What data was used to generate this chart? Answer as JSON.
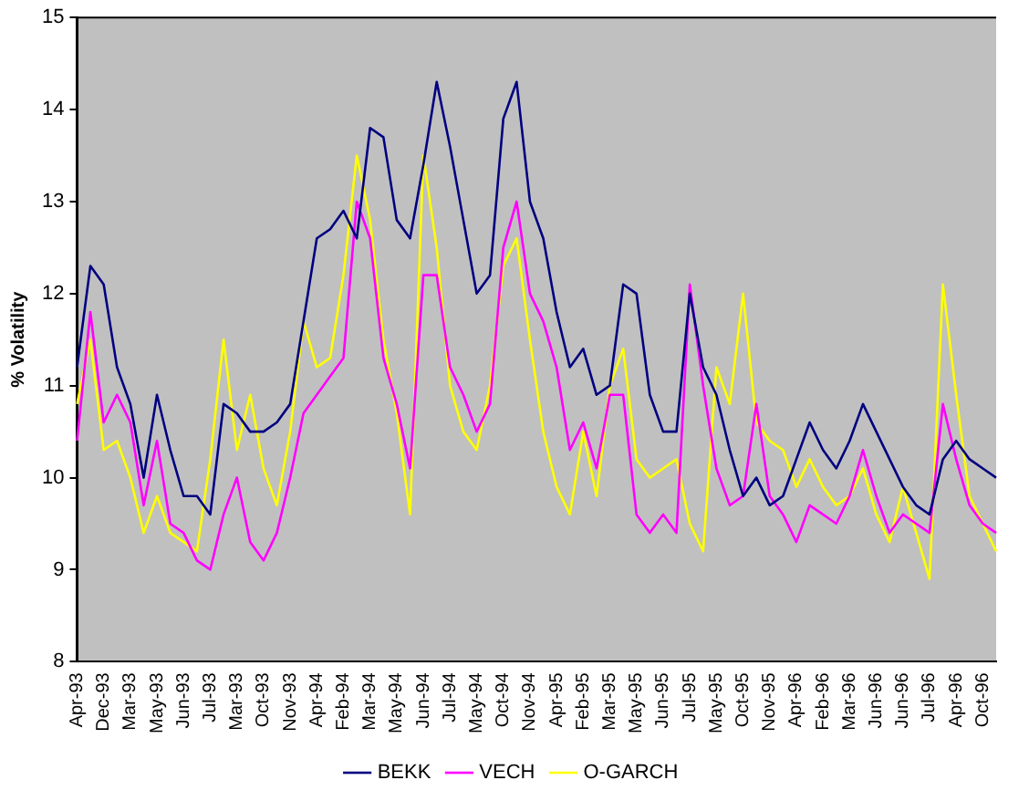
{
  "chart_data": {
    "type": "line",
    "ylabel": "% Volatility",
    "categories": [
      "Apr-93",
      null,
      "Dec-93",
      null,
      "Mar-93",
      null,
      "May-93",
      null,
      "Jun-93",
      null,
      "Jul-93",
      null,
      "Mar-93",
      null,
      "Oct-93",
      null,
      "Nov-93",
      null,
      "Apr-94",
      null,
      "Feb-94",
      null,
      "Mar-94",
      null,
      "May-94",
      null,
      "Jun-94",
      null,
      "Jul-94",
      null,
      "May-94",
      null,
      "Oct-94",
      null,
      "Nov-94",
      null,
      "Apr-95",
      null,
      "Feb-95",
      null,
      "Mar-95",
      null,
      "May-95",
      null,
      "Jun-95",
      null,
      "Jul-95",
      null,
      "May-95",
      null,
      "Oct-95",
      null,
      "Nov-95",
      null,
      "Apr-96",
      null,
      "Feb-96",
      null,
      "Mar-96",
      null,
      "Jun-96",
      null,
      "Jun-96",
      null,
      "Jul-96",
      null,
      "Apr-96",
      null,
      "Oct-96",
      null
    ],
    "series": [
      {
        "name": "BEKK",
        "color": "#000080",
        "values": [
          11.2,
          12.3,
          12.1,
          11.2,
          10.8,
          10.0,
          10.9,
          10.3,
          9.8,
          9.8,
          9.6,
          10.8,
          10.7,
          10.5,
          10.5,
          10.6,
          10.8,
          11.7,
          12.6,
          12.7,
          12.9,
          12.6,
          13.8,
          13.7,
          12.8,
          12.6,
          13.4,
          14.3,
          13.6,
          12.8,
          12.0,
          12.2,
          13.9,
          14.3,
          13.0,
          12.6,
          11.8,
          11.2,
          11.4,
          10.9,
          11.0,
          12.1,
          12.0,
          10.9,
          10.5,
          10.5,
          12.0,
          11.2,
          10.9,
          10.3,
          9.8,
          10.0,
          9.7,
          9.8,
          10.2,
          10.6,
          10.3,
          10.1,
          10.4,
          10.8,
          10.5,
          10.2,
          9.9,
          9.7,
          9.6,
          10.2,
          10.4,
          10.2,
          10.1,
          10.0
        ]
      },
      {
        "name": "VECH",
        "color": "#ff00ff",
        "values": [
          10.4,
          11.8,
          10.6,
          10.9,
          10.6,
          9.7,
          10.4,
          9.5,
          9.4,
          9.1,
          9.0,
          9.6,
          10.0,
          9.3,
          9.1,
          9.4,
          10.0,
          10.7,
          10.9,
          11.1,
          11.3,
          13.0,
          12.6,
          11.3,
          10.8,
          10.1,
          12.2,
          12.2,
          11.2,
          10.9,
          10.5,
          10.8,
          12.5,
          13.0,
          12.0,
          11.7,
          11.2,
          10.3,
          10.6,
          10.1,
          10.9,
          10.9,
          9.6,
          9.4,
          9.6,
          9.4,
          12.1,
          11.0,
          10.1,
          9.7,
          9.8,
          10.8,
          9.8,
          9.6,
          9.3,
          9.7,
          9.6,
          9.5,
          9.8,
          10.3,
          9.8,
          9.4,
          9.6,
          9.5,
          9.4,
          10.8,
          10.2,
          9.7,
          9.5,
          9.4
        ]
      },
      {
        "name": "O-GARCH",
        "color": "#ffff00",
        "values": [
          10.8,
          11.5,
          10.3,
          10.4,
          10.0,
          9.4,
          9.8,
          9.4,
          9.3,
          9.2,
          10.2,
          11.5,
          10.3,
          10.9,
          10.1,
          9.7,
          10.5,
          11.7,
          11.2,
          11.3,
          12.2,
          13.5,
          12.8,
          11.5,
          10.7,
          9.6,
          13.5,
          12.5,
          11.0,
          10.5,
          10.3,
          11.0,
          12.3,
          12.6,
          11.5,
          10.5,
          9.9,
          9.6,
          10.5,
          9.8,
          11.0,
          11.4,
          10.2,
          10.0,
          10.1,
          10.2,
          9.5,
          9.2,
          11.2,
          10.8,
          12.0,
          10.6,
          10.4,
          10.3,
          9.9,
          10.2,
          9.9,
          9.7,
          9.8,
          10.1,
          9.6,
          9.3,
          9.9,
          9.4,
          8.9,
          12.1,
          10.9,
          9.8,
          9.5,
          9.2
        ]
      }
    ],
    "ylim": [
      8,
      15
    ],
    "yticks": [
      8,
      9,
      10,
      11,
      12,
      13,
      14,
      15
    ],
    "grid": false,
    "legend": "bottom"
  }
}
